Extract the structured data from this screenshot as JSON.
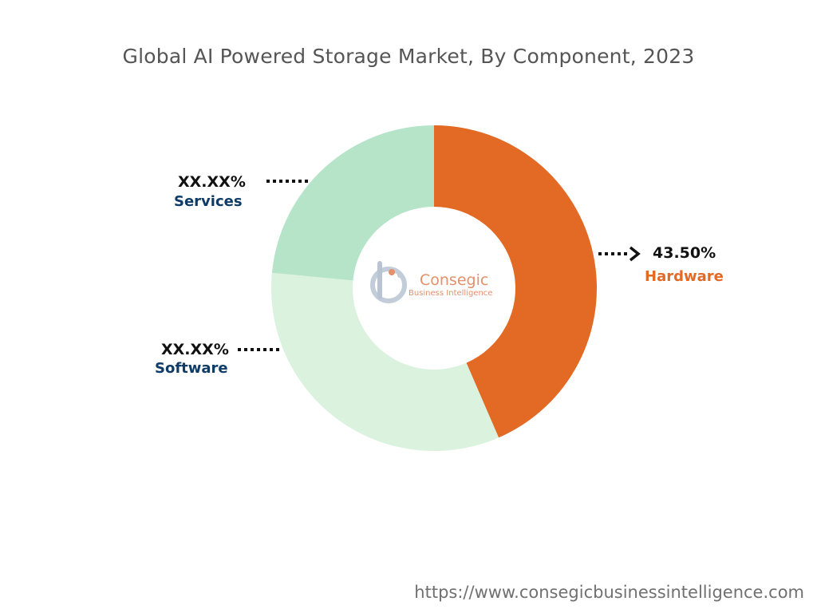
{
  "chart_data": {
    "type": "pie",
    "title": "Global AI Powered Storage Market, By Component, 2023",
    "slices": [
      {
        "label": "Hardware",
        "value": 43.5,
        "value_label": "43.50%",
        "color": "#e26a25",
        "label_color": "#e26a25"
      },
      {
        "label": "Software",
        "value": 33.0,
        "value_label": "XX.XX%",
        "color": "#daf2de",
        "label_color": "#0e3c66"
      },
      {
        "label": "Services",
        "value": 23.5,
        "value_label": "XX.XX%",
        "color": "#b5e4c9",
        "label_color": "#0e3c66"
      }
    ]
  },
  "logo": {
    "name": "Consegic",
    "tagline": "Business Intelligence"
  },
  "footer": {
    "url": "https://www.consegicbusinessintelligence.com"
  }
}
